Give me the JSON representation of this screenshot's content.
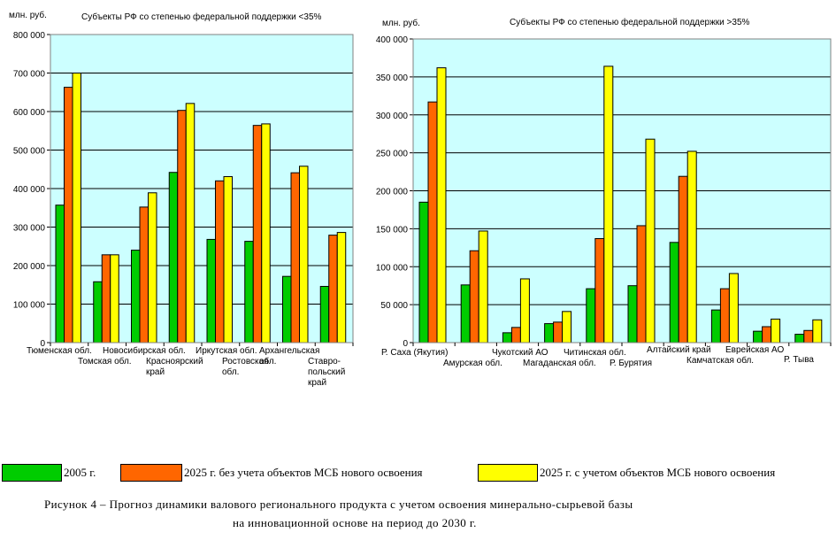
{
  "colors": {
    "plot_bg": "#ccffff",
    "gridline": "#000000",
    "series": [
      "#00cc00",
      "#ff6600",
      "#ffff00"
    ]
  },
  "legend": {
    "items": [
      {
        "label": "2005 г.",
        "color": "#00cc00"
      },
      {
        "label": "2025 г. без учета объектов МСБ нового освоения",
        "color": "#ff6600"
      },
      {
        "label": "2025 г. с учетом объектов МСБ нового освоения",
        "color": "#ffff00"
      }
    ]
  },
  "caption": {
    "line1": "Рисунок  4 – Прогноз динамики валового регионального продукта с учетом освоения минерально-сырьевой базы",
    "line2": "на инновационной основе на период до 2030 г."
  },
  "chart_data": [
    {
      "type": "bar",
      "title": "Субъекты РФ со степенью федеральной поддержки <35%",
      "ylabel": "млн. руб.",
      "ylim": [
        0,
        800000
      ],
      "yticks": [
        0,
        100000,
        200000,
        300000,
        400000,
        500000,
        600000,
        700000,
        800000
      ],
      "ytick_labels": [
        "0",
        "100 000",
        "200 000",
        "300 000",
        "400 000",
        "500 000",
        "600 000",
        "700 000",
        "800 000"
      ],
      "grid": true,
      "categories": [
        "Тюменская обл.",
        "Томская обл.",
        "Новосибирская обл.",
        "Красноярский край",
        "Иркутская обл.",
        "Ростовская обл.",
        "Архангельская обл.",
        "Ставро-польский край"
      ],
      "category_label_lines": [
        [
          "Тюменская обл."
        ],
        [
          "Томская обл."
        ],
        [
          "Новосибирская обл."
        ],
        [
          "Красноярский",
          "край"
        ],
        [
          "Иркутская обл."
        ],
        [
          "Ростовская",
          "обл."
        ],
        [
          "Архангельская",
          "обл."
        ],
        [
          "Ставро-",
          "польский",
          "край"
        ]
      ],
      "series": [
        {
          "name": "2005 г.",
          "values": [
            357000,
            158000,
            240000,
            442000,
            268000,
            263000,
            172000,
            146000
          ]
        },
        {
          "name": "2025 г. без учета объектов МСБ нового освоения",
          "values": [
            663000,
            228000,
            352000,
            603000,
            420000,
            564000,
            441000,
            279000
          ]
        },
        {
          "name": "2025 г. с учетом объектов МСБ нового освоения",
          "values": [
            700000,
            228000,
            389000,
            621000,
            431000,
            568000,
            458000,
            286000
          ]
        }
      ]
    },
    {
      "type": "bar",
      "title": "Субъекты РФ со степенью федеральной поддержки >35%",
      "ylabel": "млн. руб.",
      "ylim": [
        0,
        400000
      ],
      "yticks": [
        0,
        50000,
        100000,
        150000,
        200000,
        250000,
        300000,
        350000,
        400000
      ],
      "ytick_labels": [
        "0",
        "50 000",
        "100 000",
        "150 000",
        "200 000",
        "250 000",
        "300 000",
        "350 000",
        "400 000"
      ],
      "grid": true,
      "categories": [
        "Р. Саха (Якутия)",
        "Амурская обл.",
        "Чукотский АО",
        "Магаданская обл.",
        "Читинская обл.",
        "Р. Бурятия",
        "Алтайский край",
        "Камчатская обл.",
        "Еврейская АО",
        "Р. Тыва"
      ],
      "category_label_lines": [
        [
          "Р. Саха (Якутия)"
        ],
        [
          "Амурская обл."
        ],
        [
          "Чукотский АО"
        ],
        [
          "Магаданская обл."
        ],
        [
          "Читинская обл."
        ],
        [
          "Р. Бурятия"
        ],
        [
          "Алтайский край"
        ],
        [
          "Камчатская обл."
        ],
        [
          "Еврейская АО"
        ],
        [
          "Р. Тыва"
        ]
      ],
      "series": [
        {
          "name": "2005 г.",
          "values": [
            185000,
            76000,
            13000,
            25000,
            71000,
            75000,
            132000,
            43000,
            15000,
            11000
          ]
        },
        {
          "name": "2025 г. без учета объектов МСБ нового освоения",
          "values": [
            317000,
            121000,
            20000,
            27000,
            137000,
            154000,
            219000,
            71000,
            21000,
            16000
          ]
        },
        {
          "name": "2025 г. с учетом объектов МСБ нового освоения",
          "values": [
            362000,
            147000,
            84000,
            41000,
            364000,
            268000,
            252000,
            91000,
            31000,
            30000
          ]
        }
      ]
    }
  ]
}
